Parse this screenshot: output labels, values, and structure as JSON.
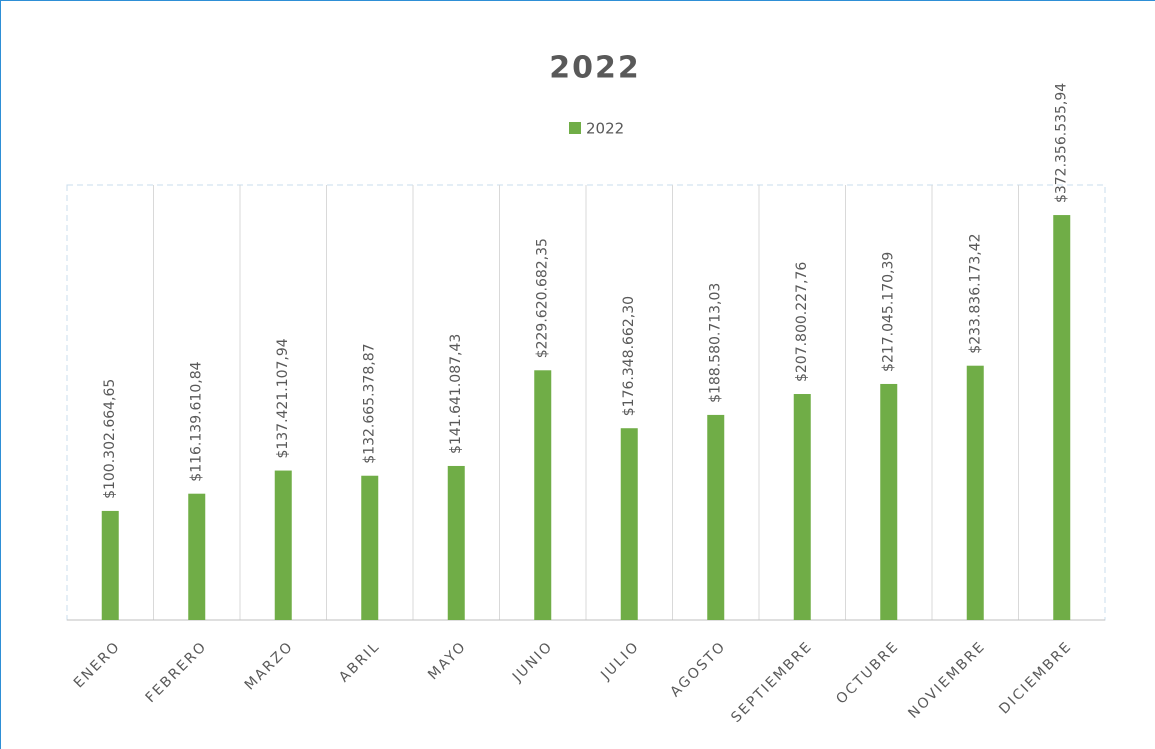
{
  "chart_data": {
    "type": "bar",
    "title": "2022",
    "categories": [
      "ENERO",
      "FEBRERO",
      "MARZO",
      "ABRIL",
      "MAYO",
      "JUNIO",
      "JULIO",
      "AGOSTO",
      "SEPTIEMBRE",
      "OCTUBRE",
      "NOVIEMBRE",
      "DICIEMBRE"
    ],
    "series": [
      {
        "name": "2022",
        "color": "#70ad47",
        "values": [
          100302664.65,
          116139610.84,
          137421107.94,
          132665378.87,
          141641087.43,
          229620682.35,
          176348662.3,
          188580713.03,
          207800227.76,
          217045170.39,
          233836173.42,
          372356535.94
        ],
        "value_labels": [
          "$100.302.664,65",
          "$116.139.610,84",
          "$137.421.107,94",
          "$132.665.378,87",
          "$141.641.087,43",
          "$229.620.682,35",
          "$176.348.662,30",
          "$188.580.713,03",
          "$207.800.227,76",
          "$217.045.170,39",
          "$233.836.173,42",
          "$372.356.535,94"
        ]
      }
    ],
    "ylim": [
      0,
      400000000
    ],
    "legend": "top"
  }
}
